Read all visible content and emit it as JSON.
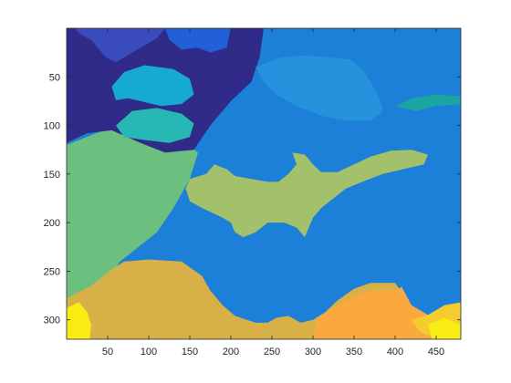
{
  "chart_data": {
    "type": "heatmap",
    "title": "",
    "xlabel": "",
    "ylabel": "",
    "colormap": "parula",
    "y_direction": "reverse",
    "xlim": [
      0,
      480
    ],
    "ylim": [
      0,
      320
    ],
    "xticks": [
      50,
      100,
      150,
      200,
      250,
      300,
      350,
      400,
      450
    ],
    "yticks": [
      50,
      100,
      150,
      200,
      250,
      300
    ],
    "x_tick_labels": [
      "50",
      "100",
      "150",
      "200",
      "250",
      "300",
      "350",
      "400",
      "450"
    ],
    "y_tick_labels": [
      "50",
      "100",
      "150",
      "200",
      "250",
      "300"
    ],
    "regions": [
      {
        "name": "water",
        "color": "#1c80d9",
        "points": [
          [
            0,
            0
          ],
          [
            480,
            0
          ],
          [
            480,
            320
          ],
          [
            0,
            320
          ]
        ]
      },
      {
        "name": "teal-plants-left",
        "color": "#6cc07f",
        "points": [
          [
            0,
            120
          ],
          [
            45,
            105
          ],
          [
            70,
            95
          ],
          [
            120,
            100
          ],
          [
            160,
            128
          ],
          [
            150,
            155
          ],
          [
            130,
            185
          ],
          [
            110,
            210
          ],
          [
            65,
            240
          ],
          [
            40,
            270
          ],
          [
            0,
            280
          ]
        ]
      },
      {
        "name": "sand-floor",
        "color": "#d8b048",
        "points": [
          [
            0,
            278
          ],
          [
            30,
            265
          ],
          [
            55,
            248
          ],
          [
            70,
            240
          ],
          [
            100,
            238
          ],
          [
            140,
            240
          ],
          [
            165,
            255
          ],
          [
            175,
            270
          ],
          [
            190,
            285
          ],
          [
            205,
            296
          ],
          [
            230,
            303
          ],
          [
            245,
            303
          ],
          [
            255,
            298
          ],
          [
            270,
            296
          ],
          [
            285,
            303
          ],
          [
            300,
            300
          ],
          [
            315,
            292
          ],
          [
            330,
            280
          ],
          [
            350,
            268
          ],
          [
            370,
            262
          ],
          [
            400,
            262
          ],
          [
            405,
            268
          ],
          [
            380,
            290
          ],
          [
            350,
            300
          ],
          [
            330,
            310
          ],
          [
            320,
            320
          ],
          [
            0,
            320
          ]
        ]
      },
      {
        "name": "orange-coral",
        "color": "#f9a93d",
        "points": [
          [
            300,
            320
          ],
          [
            305,
            300
          ],
          [
            320,
            290
          ],
          [
            340,
            280
          ],
          [
            360,
            272
          ],
          [
            375,
            270
          ],
          [
            400,
            270
          ],
          [
            408,
            266
          ],
          [
            420,
            285
          ],
          [
            440,
            295
          ],
          [
            460,
            298
          ],
          [
            470,
            295
          ],
          [
            480,
            285
          ],
          [
            480,
            320
          ]
        ]
      },
      {
        "name": "yellow-rock-right",
        "color": "#f4cc2f",
        "points": [
          [
            420,
            300
          ],
          [
            440,
            295
          ],
          [
            460,
            285
          ],
          [
            480,
            282
          ],
          [
            480,
            320
          ],
          [
            450,
            320
          ],
          [
            430,
            312
          ]
        ]
      },
      {
        "name": "bright-yellow-right",
        "color": "#f9ec12",
        "points": [
          [
            440,
            305
          ],
          [
            460,
            298
          ],
          [
            480,
            305
          ],
          [
            480,
            320
          ],
          [
            445,
            320
          ]
        ]
      },
      {
        "name": "yellow-rock-left",
        "color": "#f9ec12",
        "points": [
          [
            0,
            288
          ],
          [
            15,
            282
          ],
          [
            25,
            292
          ],
          [
            30,
            305
          ],
          [
            28,
            320
          ],
          [
            0,
            320
          ]
        ]
      },
      {
        "name": "dark-navy-top",
        "color": "#302a88",
        "points": [
          [
            0,
            0
          ],
          [
            240,
            0
          ],
          [
            235,
            30
          ],
          [
            225,
            55
          ],
          [
            200,
            75
          ],
          [
            175,
            100
          ],
          [
            155,
            125
          ],
          [
            120,
            128
          ],
          [
            90,
            118
          ],
          [
            55,
            105
          ],
          [
            25,
            108
          ],
          [
            0,
            118
          ]
        ]
      },
      {
        "name": "royal-blue-top",
        "color": "#3a4bbd",
        "points": [
          [
            10,
            0
          ],
          [
            120,
            0
          ],
          [
            110,
            10
          ],
          [
            90,
            20
          ],
          [
            60,
            35
          ],
          [
            48,
            30
          ],
          [
            30,
            12
          ],
          [
            15,
            5
          ]
        ]
      },
      {
        "name": "blue-bright-top",
        "color": "#2160d8",
        "points": [
          [
            120,
            0
          ],
          [
            200,
            0
          ],
          [
            195,
            20
          ],
          [
            175,
            25
          ],
          [
            160,
            20
          ],
          [
            140,
            22
          ],
          [
            125,
            12
          ]
        ]
      },
      {
        "name": "cyan-blob",
        "color": "#16a9d3",
        "points": [
          [
            55,
            60
          ],
          [
            70,
            45
          ],
          [
            95,
            38
          ],
          [
            130,
            42
          ],
          [
            150,
            52
          ],
          [
            155,
            68
          ],
          [
            140,
            78
          ],
          [
            115,
            80
          ],
          [
            95,
            76
          ],
          [
            75,
            72
          ],
          [
            60,
            74
          ]
        ]
      },
      {
        "name": "turquoise-blob",
        "color": "#27b8b6",
        "points": [
          [
            60,
            100
          ],
          [
            80,
            85
          ],
          [
            110,
            82
          ],
          [
            140,
            88
          ],
          [
            155,
            98
          ],
          [
            150,
            112
          ],
          [
            125,
            118
          ],
          [
            95,
            115
          ],
          [
            70,
            112
          ]
        ]
      },
      {
        "name": "light-blue-top-right",
        "color": "#2492dc",
        "points": [
          [
            230,
            40
          ],
          [
            260,
            30
          ],
          [
            290,
            28
          ],
          [
            320,
            30
          ],
          [
            345,
            32
          ],
          [
            360,
            42
          ],
          [
            370,
            55
          ],
          [
            380,
            70
          ],
          [
            385,
            85
          ],
          [
            370,
            95
          ],
          [
            340,
            95
          ],
          [
            310,
            90
          ],
          [
            280,
            80
          ],
          [
            255,
            68
          ],
          [
            240,
            55
          ]
        ]
      },
      {
        "name": "gecko",
        "color": "#a3c06a",
        "points": [
          [
            170,
            150
          ],
          [
            180,
            140
          ],
          [
            195,
            145
          ],
          [
            205,
            152
          ],
          [
            225,
            155
          ],
          [
            245,
            158
          ],
          [
            258,
            158
          ],
          [
            270,
            150
          ],
          [
            280,
            140
          ],
          [
            275,
            128
          ],
          [
            290,
            130
          ],
          [
            300,
            140
          ],
          [
            310,
            148
          ],
          [
            330,
            148
          ],
          [
            350,
            140
          ],
          [
            370,
            132
          ],
          [
            395,
            126
          ],
          [
            420,
            125
          ],
          [
            440,
            130
          ],
          [
            435,
            140
          ],
          [
            410,
            145
          ],
          [
            385,
            150
          ],
          [
            360,
            158
          ],
          [
            340,
            165
          ],
          [
            325,
            175
          ],
          [
            310,
            185
          ],
          [
            300,
            195
          ],
          [
            295,
            205
          ],
          [
            290,
            215
          ],
          [
            280,
            205
          ],
          [
            265,
            200
          ],
          [
            245,
            200
          ],
          [
            230,
            210
          ],
          [
            215,
            215
          ],
          [
            205,
            210
          ],
          [
            200,
            200
          ],
          [
            190,
            195
          ],
          [
            165,
            185
          ],
          [
            150,
            178
          ],
          [
            145,
            165
          ],
          [
            150,
            155
          ]
        ]
      },
      {
        "name": "green-streak-right",
        "color": "#1aa5a2",
        "points": [
          [
            400,
            80
          ],
          [
            420,
            72
          ],
          [
            450,
            68
          ],
          [
            480,
            70
          ],
          [
            480,
            78
          ],
          [
            450,
            80
          ],
          [
            425,
            85
          ]
        ]
      }
    ]
  }
}
